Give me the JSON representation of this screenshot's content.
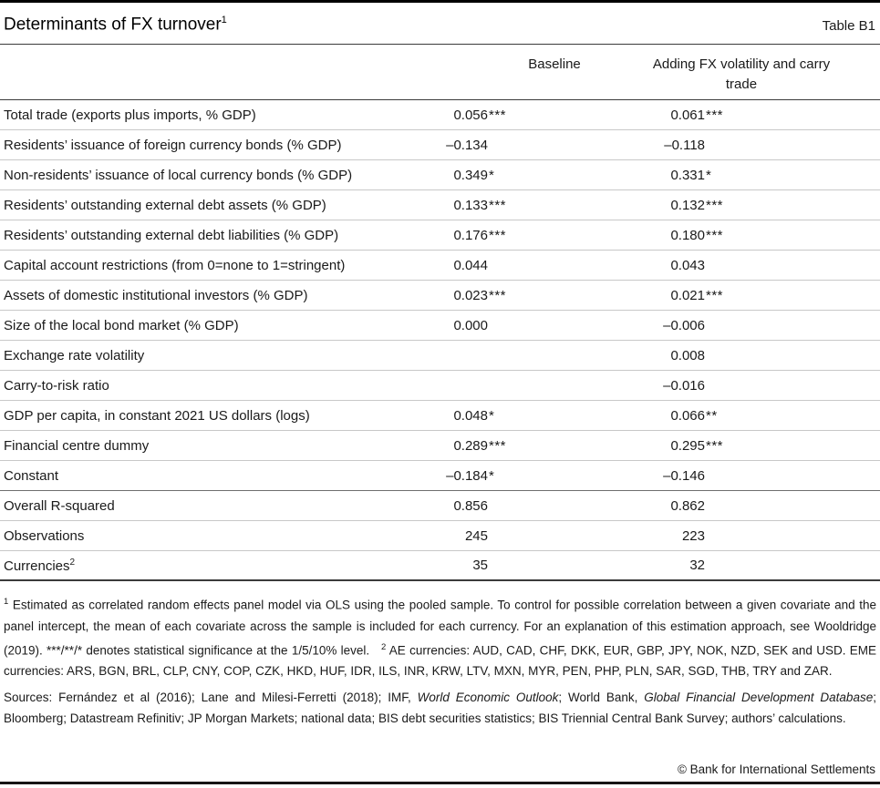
{
  "title": {
    "text": "Determinants of FX turnover",
    "sup": "1",
    "tag": "Table B1"
  },
  "header": {
    "col1": "Baseline",
    "col2": "Adding FX volatility and carry trade"
  },
  "table": {
    "rows": [
      {
        "label": "Total trade (exports plus imports, % GDP)",
        "v1": "0.056",
        "s1": "***",
        "v2": "0.061",
        "s2": "***"
      },
      {
        "label": "Residents’ issuance of foreign currency bonds (% GDP)",
        "v1": "–0.134",
        "s1": "",
        "v2": "–0.118",
        "s2": ""
      },
      {
        "label": "Non-residents’ issuance of local currency bonds (% GDP)",
        "v1": "0.349",
        "s1": "*",
        "v2": "0.331",
        "s2": "*"
      },
      {
        "label": "Residents’ outstanding external debt assets (% GDP)",
        "v1": "0.133",
        "s1": "***",
        "v2": "0.132",
        "s2": "***"
      },
      {
        "label": "Residents’ outstanding external debt liabilities (% GDP)",
        "v1": "0.176",
        "s1": "***",
        "v2": "0.180",
        "s2": "***"
      },
      {
        "label": "Capital account restrictions (from 0=none to 1=stringent)",
        "v1": "0.044",
        "s1": "",
        "v2": "0.043",
        "s2": ""
      },
      {
        "label": "Assets of domestic institutional investors (% GDP)",
        "v1": "0.023",
        "s1": "***",
        "v2": "0.021",
        "s2": "***"
      },
      {
        "label": "Size of the local bond market (% GDP)",
        "v1": "0.000",
        "s1": "",
        "v2": "–0.006",
        "s2": ""
      },
      {
        "label": "Exchange rate volatility",
        "v1": "",
        "s1": "",
        "v2": "0.008",
        "s2": ""
      },
      {
        "label": "Carry-to-risk ratio",
        "v1": "",
        "s1": "",
        "v2": "–0.016",
        "s2": ""
      },
      {
        "label": "GDP per capita, in constant 2021 US dollars (logs)",
        "v1": "0.048",
        "s1": "*",
        "v2": "0.066",
        "s2": "**"
      },
      {
        "label": "Financial centre dummy",
        "v1": "0.289",
        "s1": "***",
        "v2": "0.295",
        "s2": "***"
      },
      {
        "label": "Constant",
        "v1": "–0.184",
        "s1": "*",
        "v2": "–0.146",
        "s2": ""
      }
    ],
    "stats": [
      {
        "label": "Overall R-squared",
        "v1": "0.856",
        "s1": "",
        "v2": "0.862",
        "s2": ""
      },
      {
        "label": "Observations",
        "v1": "245",
        "s1": "",
        "v2": "223",
        "s2": ""
      },
      {
        "label": "Currencies",
        "sup": "2",
        "v1": "35",
        "s1": "",
        "v2": "32",
        "s2": ""
      }
    ]
  },
  "footnote": {
    "segments": [
      {
        "t": "1",
        "sup": true
      },
      {
        "t": "  Estimated as correlated random effects panel model via OLS using the pooled sample. To control for possible correlation between a given covariate and the panel intercept, the mean of each covariate across the sample is included for each currency. For an explanation of this estimation approach, see Wooldridge (2019). ***/**/* denotes statistical significance at the 1/5/10% level."
      },
      {
        "t": "   "
      },
      {
        "t": "2",
        "sup": true
      },
      {
        "t": "  AE currencies: AUD, CAD, CHF, DKK, EUR, GBP, JPY, NOK, NZD, SEK and USD. EME currencies: ARS, BGN, BRL, CLP, CNY, COP, CZK, HKD, HUF, IDR, ILS, INR, KRW, LTV, MXN, MYR, PEN, PHP, PLN, SAR, SGD, THB, TRY and ZAR."
      }
    ]
  },
  "sources": {
    "segments": [
      {
        "t": "Sources: Fernández et al (2016); Lane and Milesi-Ferretti (2018); IMF, "
      },
      {
        "t": "World Economic Outlook",
        "i": true
      },
      {
        "t": "; World Bank, "
      },
      {
        "t": "Global Financial Development Database",
        "i": true
      },
      {
        "t": "; Bloomberg; Datastream Refinitiv; JP Morgan Markets; national data; BIS debt securities statistics; BIS Triennial Central Bank Survey; authors’ calculations."
      }
    ]
  },
  "copyright": "© Bank for International Settlements"
}
